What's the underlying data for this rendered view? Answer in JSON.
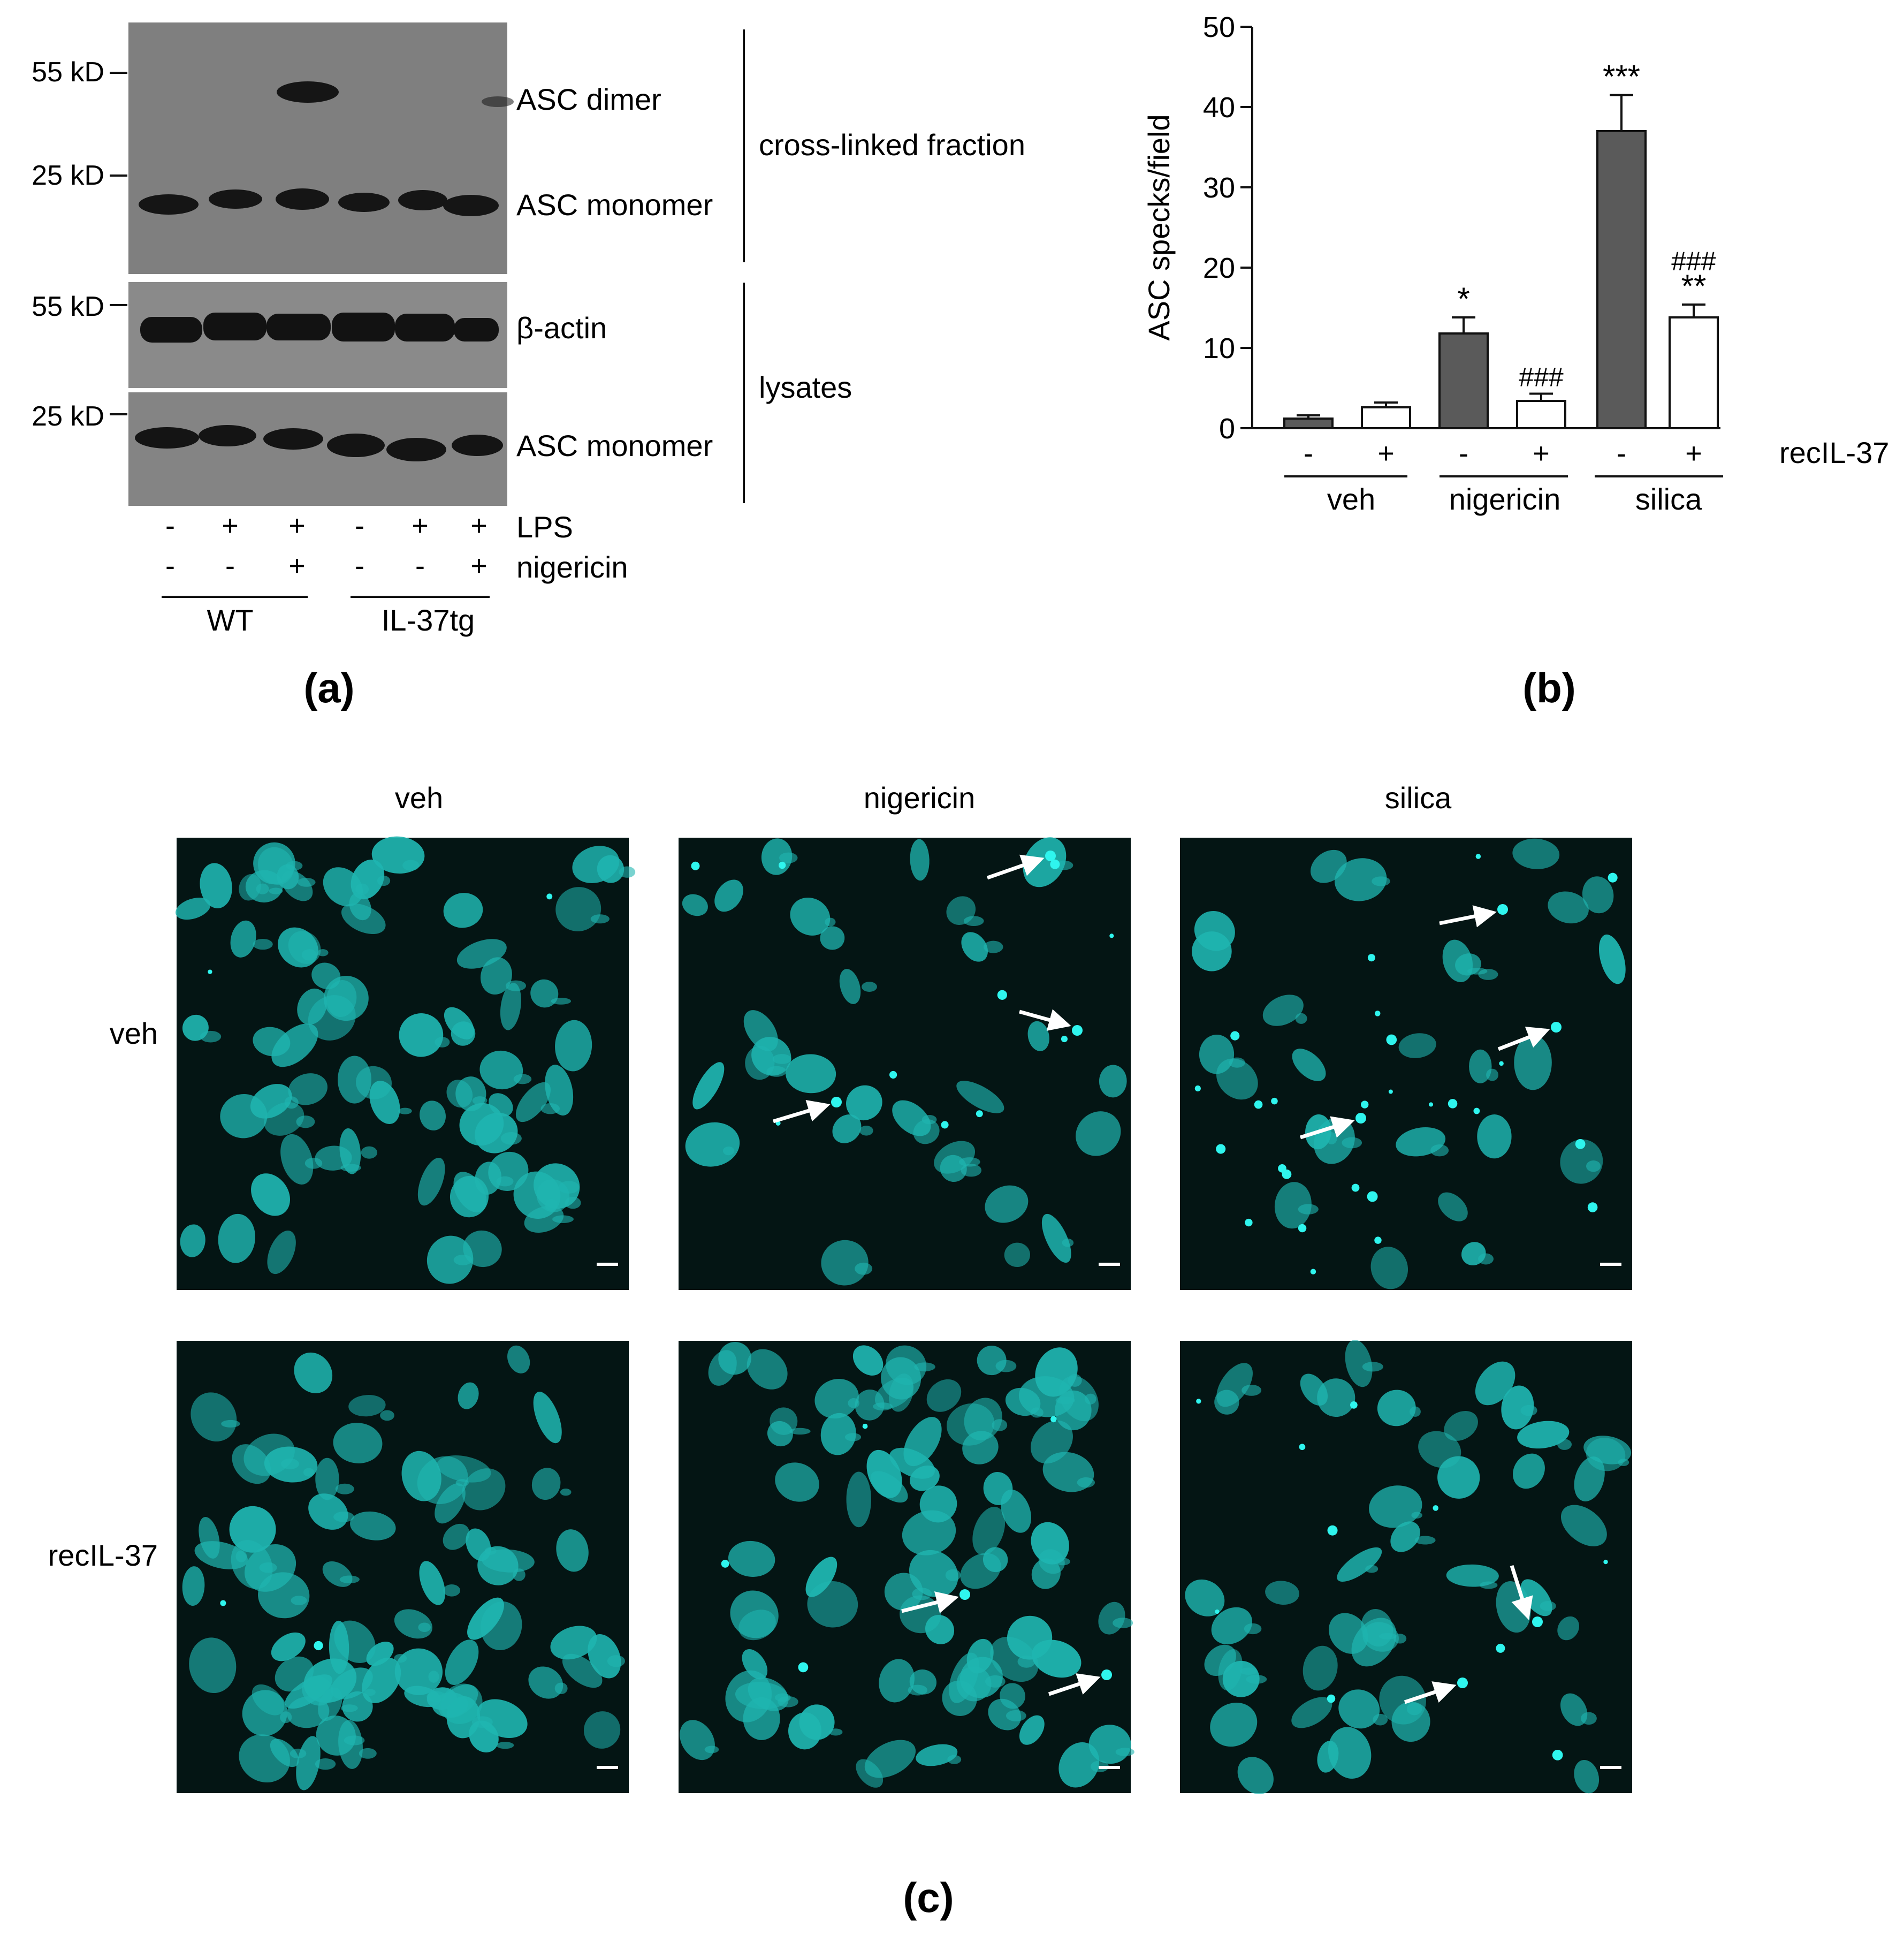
{
  "panel_a": {
    "letter": "(a)",
    "mw_markers": [
      "55 kD",
      "25 kD",
      "55 kD",
      "25 kD"
    ],
    "band_labels": [
      "ASC dimer",
      "ASC monomer",
      "β-actin",
      "ASC monomer"
    ],
    "fraction_labels": [
      "cross-linked fraction",
      "lysates"
    ],
    "lps_row": {
      "signs": [
        "-",
        "+",
        "+",
        "-",
        "+",
        "+"
      ],
      "label": "LPS"
    },
    "nigericin_row": {
      "signs": [
        "-",
        "-",
        "+",
        "-",
        "-",
        "+"
      ],
      "label": "nigericin"
    },
    "groups": [
      "WT",
      "IL-37tg"
    ]
  },
  "panel_b": {
    "letter": "(b)",
    "recil_label": "recIL-37",
    "recil_signs": [
      "-",
      "+",
      "-",
      "+",
      "-",
      "+"
    ],
    "groups": [
      "veh",
      "nigericin",
      "silica"
    ]
  },
  "panel_c": {
    "letter": "(c)",
    "column_headers": [
      "veh",
      "nigericin",
      "silica"
    ],
    "row_labels": [
      "veh",
      "recIL-37"
    ]
  },
  "chart_data": {
    "type": "bar",
    "ylabel": "ASC specks/field",
    "ylim": [
      0,
      50
    ],
    "yticks": [
      0,
      10,
      20,
      30,
      40,
      50
    ],
    "categories": [
      "veh -",
      "veh +",
      "nigericin -",
      "nigericin +",
      "silica -",
      "silica +"
    ],
    "values": [
      1.2,
      2.6,
      11.8,
      3.4,
      37.0,
      13.8
    ],
    "errors": [
      0.4,
      0.6,
      2.0,
      0.9,
      4.5,
      1.6
    ],
    "fills": [
      "#5a5a5a",
      "#ffffff",
      "#5a5a5a",
      "#ffffff",
      "#5a5a5a",
      "#ffffff"
    ],
    "annotations": [
      "",
      "",
      "*",
      "###",
      "***",
      "###\n**"
    ]
  },
  "colors": {
    "bar_dark": "#5a5a5a",
    "bar_light": "#ffffff",
    "micrograph_bg": "#041514",
    "cell": "#1fb5b0",
    "speck": "#2ff5ee"
  }
}
